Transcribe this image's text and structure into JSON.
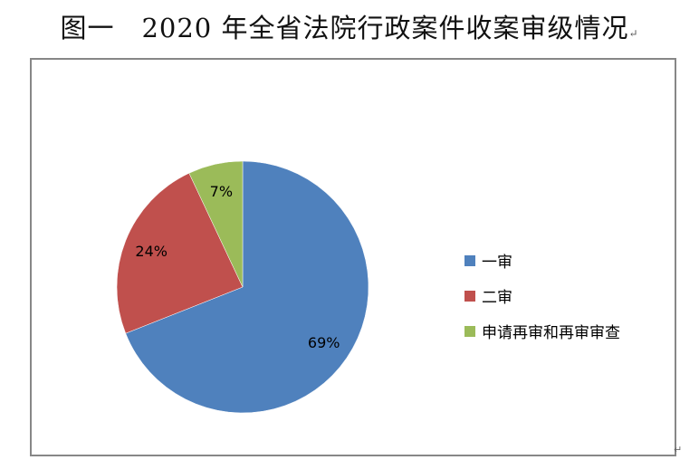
{
  "chart_data": {
    "type": "pie",
    "title": "图一　2020 年全省法院行政案件收案审级情况",
    "title_mark": "↵",
    "start_angle": "top, clockwise",
    "slices": [
      {
        "label": "一审",
        "value": 69,
        "data_label": "69%",
        "color": "#4F81BD"
      },
      {
        "label": "二审",
        "value": 24,
        "data_label": "24%",
        "color": "#C0504D"
      },
      {
        "label": "申请再审和再审审查",
        "value": 7,
        "data_label": "7%",
        "color": "#9BBB59"
      }
    ],
    "legend_position": "right"
  }
}
